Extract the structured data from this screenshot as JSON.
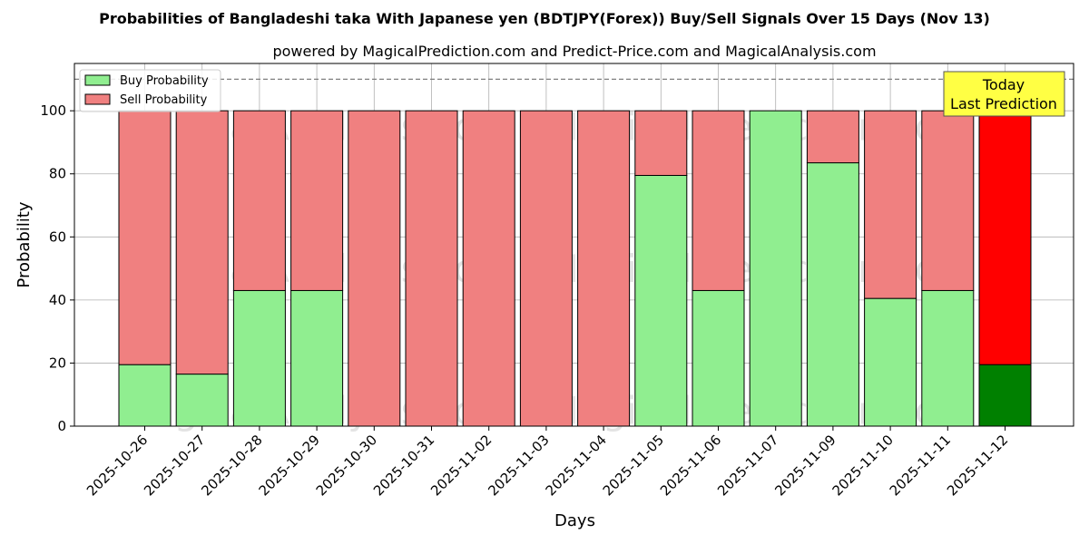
{
  "chart_data": {
    "type": "bar",
    "stacked": true,
    "title": "Probabilities of Bangladeshi taka With Japanese yen (BDTJPY(Forex)) Buy/Sell Signals Over 15 Days (Nov 13)",
    "subtitle": "powered by MagicalPrediction.com and Predict-Price.com and MagicalAnalysis.com",
    "xlabel": "Days",
    "ylabel": "Probability",
    "ylim": [
      0,
      115
    ],
    "yticks": [
      0,
      20,
      40,
      60,
      80,
      100
    ],
    "grid": true,
    "legend_position": "top-left",
    "reference_line": 110,
    "categories": [
      "2025-10-26",
      "2025-10-27",
      "2025-10-28",
      "2025-10-29",
      "2025-10-30",
      "2025-10-31",
      "2025-11-02",
      "2025-11-03",
      "2025-11-04",
      "2025-11-05",
      "2025-11-06",
      "2025-11-07",
      "2025-11-09",
      "2025-11-10",
      "2025-11-11",
      "2025-11-12"
    ],
    "series": [
      {
        "name": "Buy Probability",
        "color": "#90ee90",
        "values": [
          19.5,
          16.5,
          43,
          43,
          0,
          0,
          0,
          0,
          0,
          79.5,
          43,
          100,
          83.5,
          40.5,
          43,
          19.5
        ]
      },
      {
        "name": "Sell Probability",
        "color": "#f08080",
        "values": [
          80.5,
          83.5,
          57,
          57,
          100,
          100,
          100,
          100,
          100,
          20.5,
          57,
          0,
          16.5,
          59.5,
          57,
          80.5
        ]
      }
    ],
    "highlight": {
      "index": 15,
      "buy_color": "#008000",
      "sell_color": "#ff0000"
    },
    "annotation": {
      "lines": [
        "Today",
        "Last Prediction"
      ],
      "background": "#ffff44"
    },
    "watermarks": [
      "MagicalAnalysis.com",
      "MagicalPrediction.com"
    ]
  }
}
